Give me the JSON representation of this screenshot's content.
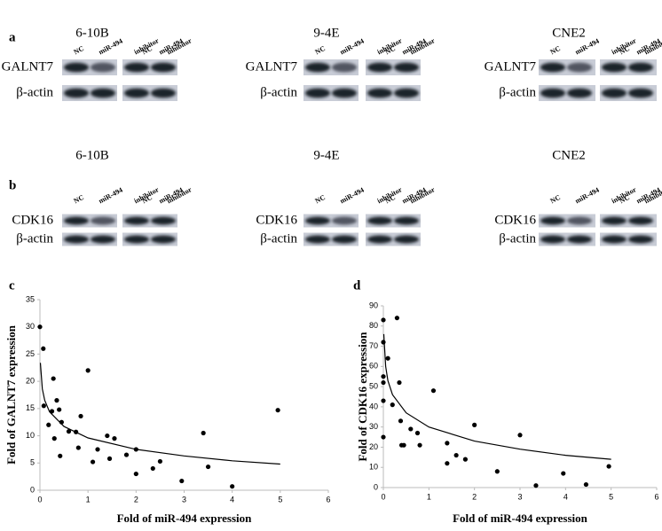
{
  "blots": [
    {
      "label": "a",
      "cell_lines": [
        "6-10B",
        "9-4E",
        "CNE2"
      ],
      "lanes": [
        [
          "NC"
        ],
        [
          "miR-494"
        ],
        [
          "inhibitor",
          "NC"
        ],
        [
          "miR-494",
          "inhibitor"
        ]
      ],
      "rows": [
        "GALNT7",
        "β-actin"
      ]
    },
    {
      "label": "b",
      "cell_lines": [
        "6-10B",
        "9-4E",
        "CNE2"
      ],
      "lanes": [
        [
          "NC"
        ],
        [
          "miR-494"
        ],
        [
          "inhibitor",
          "NC"
        ],
        [
          "miR-494",
          "inhibitor"
        ]
      ],
      "rows": [
        "CDK16",
        "β-actin"
      ]
    }
  ],
  "chart_data": [
    {
      "type": "scatter",
      "panel_label": "c",
      "x_label": "Fold of miR-494 expression",
      "y_label": "Fold of GALNT7 expression",
      "x": [
        0,
        0.07,
        0.08,
        0.18,
        0.25,
        0.28,
        0.3,
        0.35,
        0.4,
        0.42,
        0.45,
        0.6,
        0.75,
        0.8,
        0.85,
        1,
        1.1,
        1.2,
        1.4,
        1.45,
        1.55,
        1.8,
        2,
        2,
        2.35,
        2.5,
        2.95,
        3.4,
        3.5,
        4,
        4.95
      ],
      "values": [
        30,
        26,
        15.5,
        12,
        14.5,
        20.5,
        9.5,
        16.5,
        14.8,
        6.3,
        12.5,
        10.8,
        10.7,
        7.8,
        13.6,
        22,
        5.2,
        7.5,
        10,
        5.8,
        9.5,
        6.5,
        3,
        7.5,
        4,
        5.3,
        1.7,
        10.5,
        4.3,
        0.7,
        14.7
      ],
      "trendline": {
        "x": [
          0.01,
          0.05,
          0.1,
          0.2,
          0.5,
          1,
          2,
          3,
          4,
          5
        ],
        "values": [
          23.4,
          18.6,
          16.5,
          14.4,
          11.7,
          9.6,
          7.5,
          6.3,
          5.4,
          4.8
        ]
      },
      "color": "#000000",
      "xlim": [
        0,
        6
      ],
      "xticks": [
        0,
        1,
        2,
        3,
        4,
        5,
        6
      ],
      "ylim": [
        0,
        35
      ],
      "yticks": [
        0,
        5,
        10,
        15,
        20,
        25,
        30,
        35
      ]
    },
    {
      "type": "scatter",
      "panel_label": "d",
      "x_label": "Fold of miR-494 expression",
      "y_label": "Fold of CDK16 expression",
      "x": [
        0,
        0,
        0,
        0,
        0,
        0,
        0.1,
        0.2,
        0.3,
        0.35,
        0.38,
        0.4,
        0.45,
        0.6,
        0.75,
        0.8,
        1.1,
        1.4,
        1.4,
        1.6,
        1.8,
        2,
        2.5,
        3,
        3.35,
        3.95,
        4.45,
        4.95
      ],
      "values": [
        83,
        72,
        55,
        52,
        43,
        25,
        64,
        41,
        84,
        52,
        33,
        21,
        21,
        29,
        27,
        21,
        48,
        22,
        12,
        16,
        14,
        31,
        8,
        26,
        1,
        7,
        1.5,
        10.5
      ],
      "trendline": {
        "x": [
          0.01,
          0.05,
          0.1,
          0.2,
          0.5,
          1,
          2,
          3,
          4,
          5
        ],
        "values": [
          76,
          60,
          53,
          46,
          37,
          30,
          23,
          19,
          16,
          14
        ]
      },
      "color": "#000000",
      "xlim": [
        0,
        6
      ],
      "xticks": [
        0,
        1,
        2,
        3,
        4,
        5,
        6
      ],
      "ylim": [
        0,
        90
      ],
      "yticks": [
        0,
        10,
        20,
        30,
        40,
        50,
        60,
        70,
        80,
        90
      ]
    }
  ]
}
